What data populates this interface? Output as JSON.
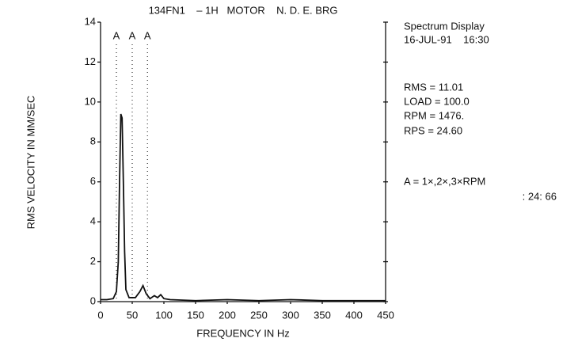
{
  "chart_data": {
    "type": "line",
    "title": "134FN1    – 1H   MOTOR    N. D. E. BRG",
    "x_label": "FREQUENCY IN Hz",
    "y_label": "RMS VELOCITY IN MM/SEC",
    "info": [
      "Spectrum Display",
      "16-JUL-91    16:30",
      "RMS = 11.01",
      "LOAD = 100.0",
      "RPM = 1476.",
      "RPS = 24.60",
      "A = 1×,2×,3×RPM",
      ": 24: 66"
    ],
    "markers": [
      {
        "label": "A",
        "x": 25
      },
      {
        "label": "A",
        "x": 50
      },
      {
        "label": "A",
        "x": 74
      }
    ],
    "x": [
      0,
      10,
      20,
      25,
      28,
      30,
      32,
      34,
      36,
      38,
      40,
      45,
      55,
      62,
      67,
      72,
      78,
      85,
      90,
      95,
      100,
      110,
      150,
      200,
      250,
      300,
      350,
      400,
      450
    ],
    "series": [
      {
        "name": "spectrum",
        "color": "#111111",
        "values": [
          0.1,
          0.1,
          0.15,
          0.5,
          2,
          6,
          9.4,
          9.2,
          6,
          2.5,
          0.6,
          0.2,
          0.2,
          0.5,
          0.8,
          0.4,
          0.15,
          0.3,
          0.2,
          0.35,
          0.15,
          0.1,
          0.05,
          0.1,
          0.05,
          0.1,
          0.05,
          0.05,
          0.05
        ]
      }
    ],
    "xlim": [
      0,
      450
    ],
    "xticks": [
      0,
      50,
      100,
      150,
      200,
      250,
      300,
      350,
      400,
      450
    ],
    "ylim": [
      0,
      14
    ],
    "yticks": [
      0,
      2,
      4,
      6,
      8,
      10,
      12,
      14
    ]
  }
}
